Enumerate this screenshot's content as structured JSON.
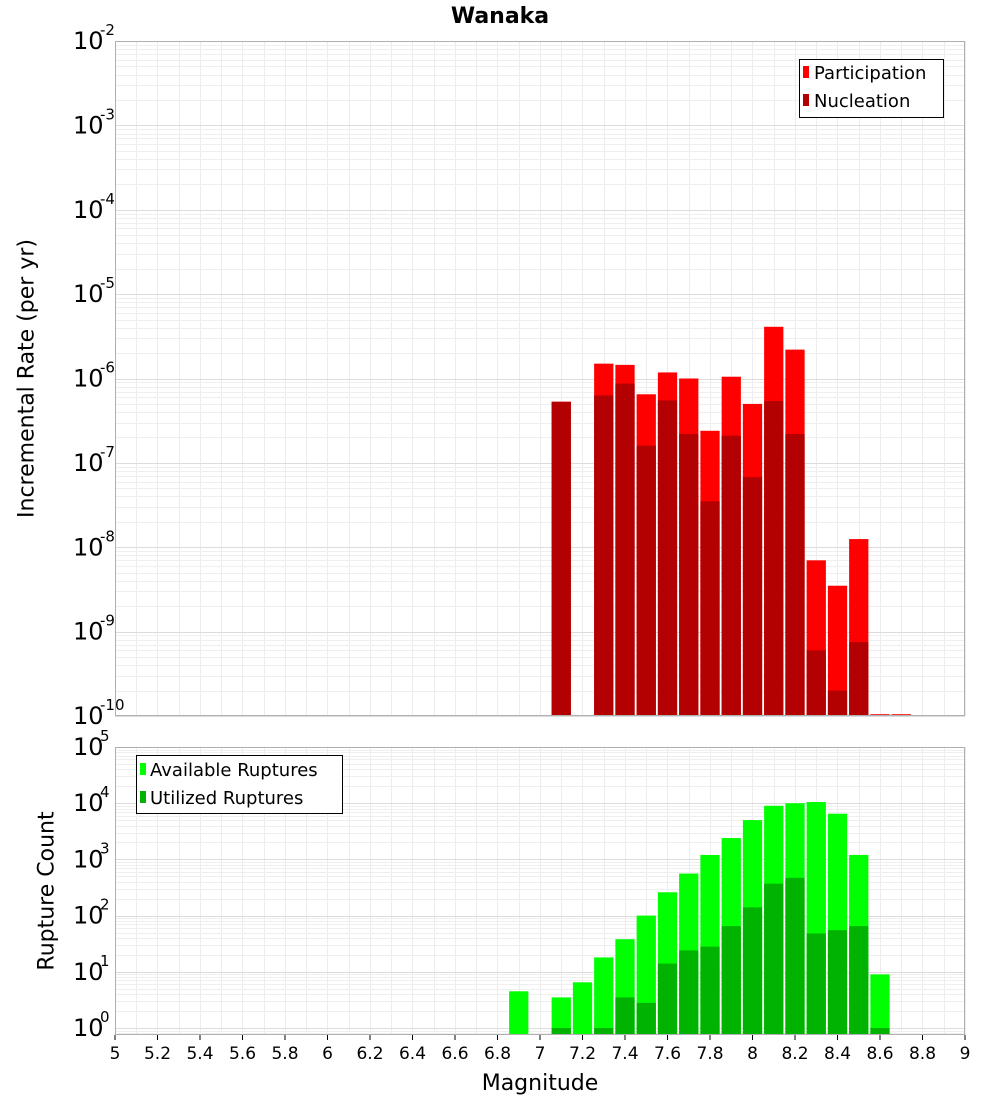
{
  "chart_title": "Wanaka",
  "chart_data": [
    {
      "type": "bar",
      "yscale": "log",
      "xlabel": "",
      "ylabel": "Incremental Rate (per yr)",
      "xlim": [
        5,
        9
      ],
      "ylim": [
        1e-10,
        0.01
      ],
      "y_tick_base": "10",
      "y_tick_exponents": [
        "-10",
        "-9",
        "-8",
        "-7",
        "-6",
        "-5",
        "-4",
        "-3",
        "-2"
      ],
      "grid": true,
      "legend_position": "top-right",
      "x": [
        7.1,
        7.3,
        7.4,
        7.5,
        7.6,
        7.7,
        7.8,
        7.9,
        8.0,
        8.1,
        8.2,
        8.3,
        8.4,
        8.5,
        8.6,
        8.7
      ],
      "series": [
        {
          "name": "Participation",
          "color": "#ff0000",
          "values": [
            5.3e-07,
            1.5e-06,
            1.45e-06,
            6.5e-07,
            1.18e-06,
            1e-06,
            2.4e-07,
            1.05e-06,
            5e-07,
            4.1e-06,
            2.2e-06,
            7e-09,
            3.5e-09,
            1.25e-08,
            1.05e-10,
            1.05e-10
          ]
        },
        {
          "name": "Nucleation",
          "color": "#b30000",
          "values": [
            5.3e-07,
            6.3e-07,
            8.7e-07,
            1.6e-07,
            5.5e-07,
            2.2e-07,
            3.5e-08,
            2.1e-07,
            6.8e-08,
            5.4e-07,
            2.2e-07,
            6e-10,
            2e-10,
            7.5e-10,
            null,
            null
          ]
        }
      ]
    },
    {
      "type": "bar",
      "yscale": "log",
      "xlabel": "Magnitude",
      "ylabel": "Rupture Count",
      "xlim": [
        5,
        9
      ],
      "ylim": [
        0.75,
        100000
      ],
      "y_tick_base": "10",
      "y_tick_exponents": [
        "0",
        "1",
        "2",
        "3",
        "4",
        "5"
      ],
      "x_tick_labels": [
        "5",
        "5.2",
        "5.4",
        "5.6",
        "5.8",
        "6",
        "6.2",
        "6.4",
        "6.6",
        "6.8",
        "7",
        "7.2",
        "7.4",
        "7.6",
        "7.8",
        "8",
        "8.2",
        "8.4",
        "8.6",
        "8.8",
        "9"
      ],
      "grid": true,
      "legend_position": "top-left",
      "x": [
        6.9,
        7.1,
        7.2,
        7.3,
        7.4,
        7.5,
        7.6,
        7.7,
        7.8,
        7.9,
        8.0,
        8.1,
        8.2,
        8.3,
        8.4,
        8.5,
        8.6
      ],
      "series": [
        {
          "name": "Available Ruptures",
          "color": "#00ff00",
          "values": [
            4.5,
            3.5,
            6.5,
            18,
            38,
            100,
            260,
            560,
            1200,
            2400,
            5000,
            9000,
            10000,
            10500,
            6500,
            1200,
            9
          ]
        },
        {
          "name": "Utilized Ruptures",
          "color": "#00b300",
          "values": [
            null,
            1,
            null,
            1,
            3.5,
            2.8,
            14,
            24,
            28,
            65,
            140,
            370,
            470,
            48,
            55,
            65,
            1
          ]
        }
      ]
    }
  ]
}
